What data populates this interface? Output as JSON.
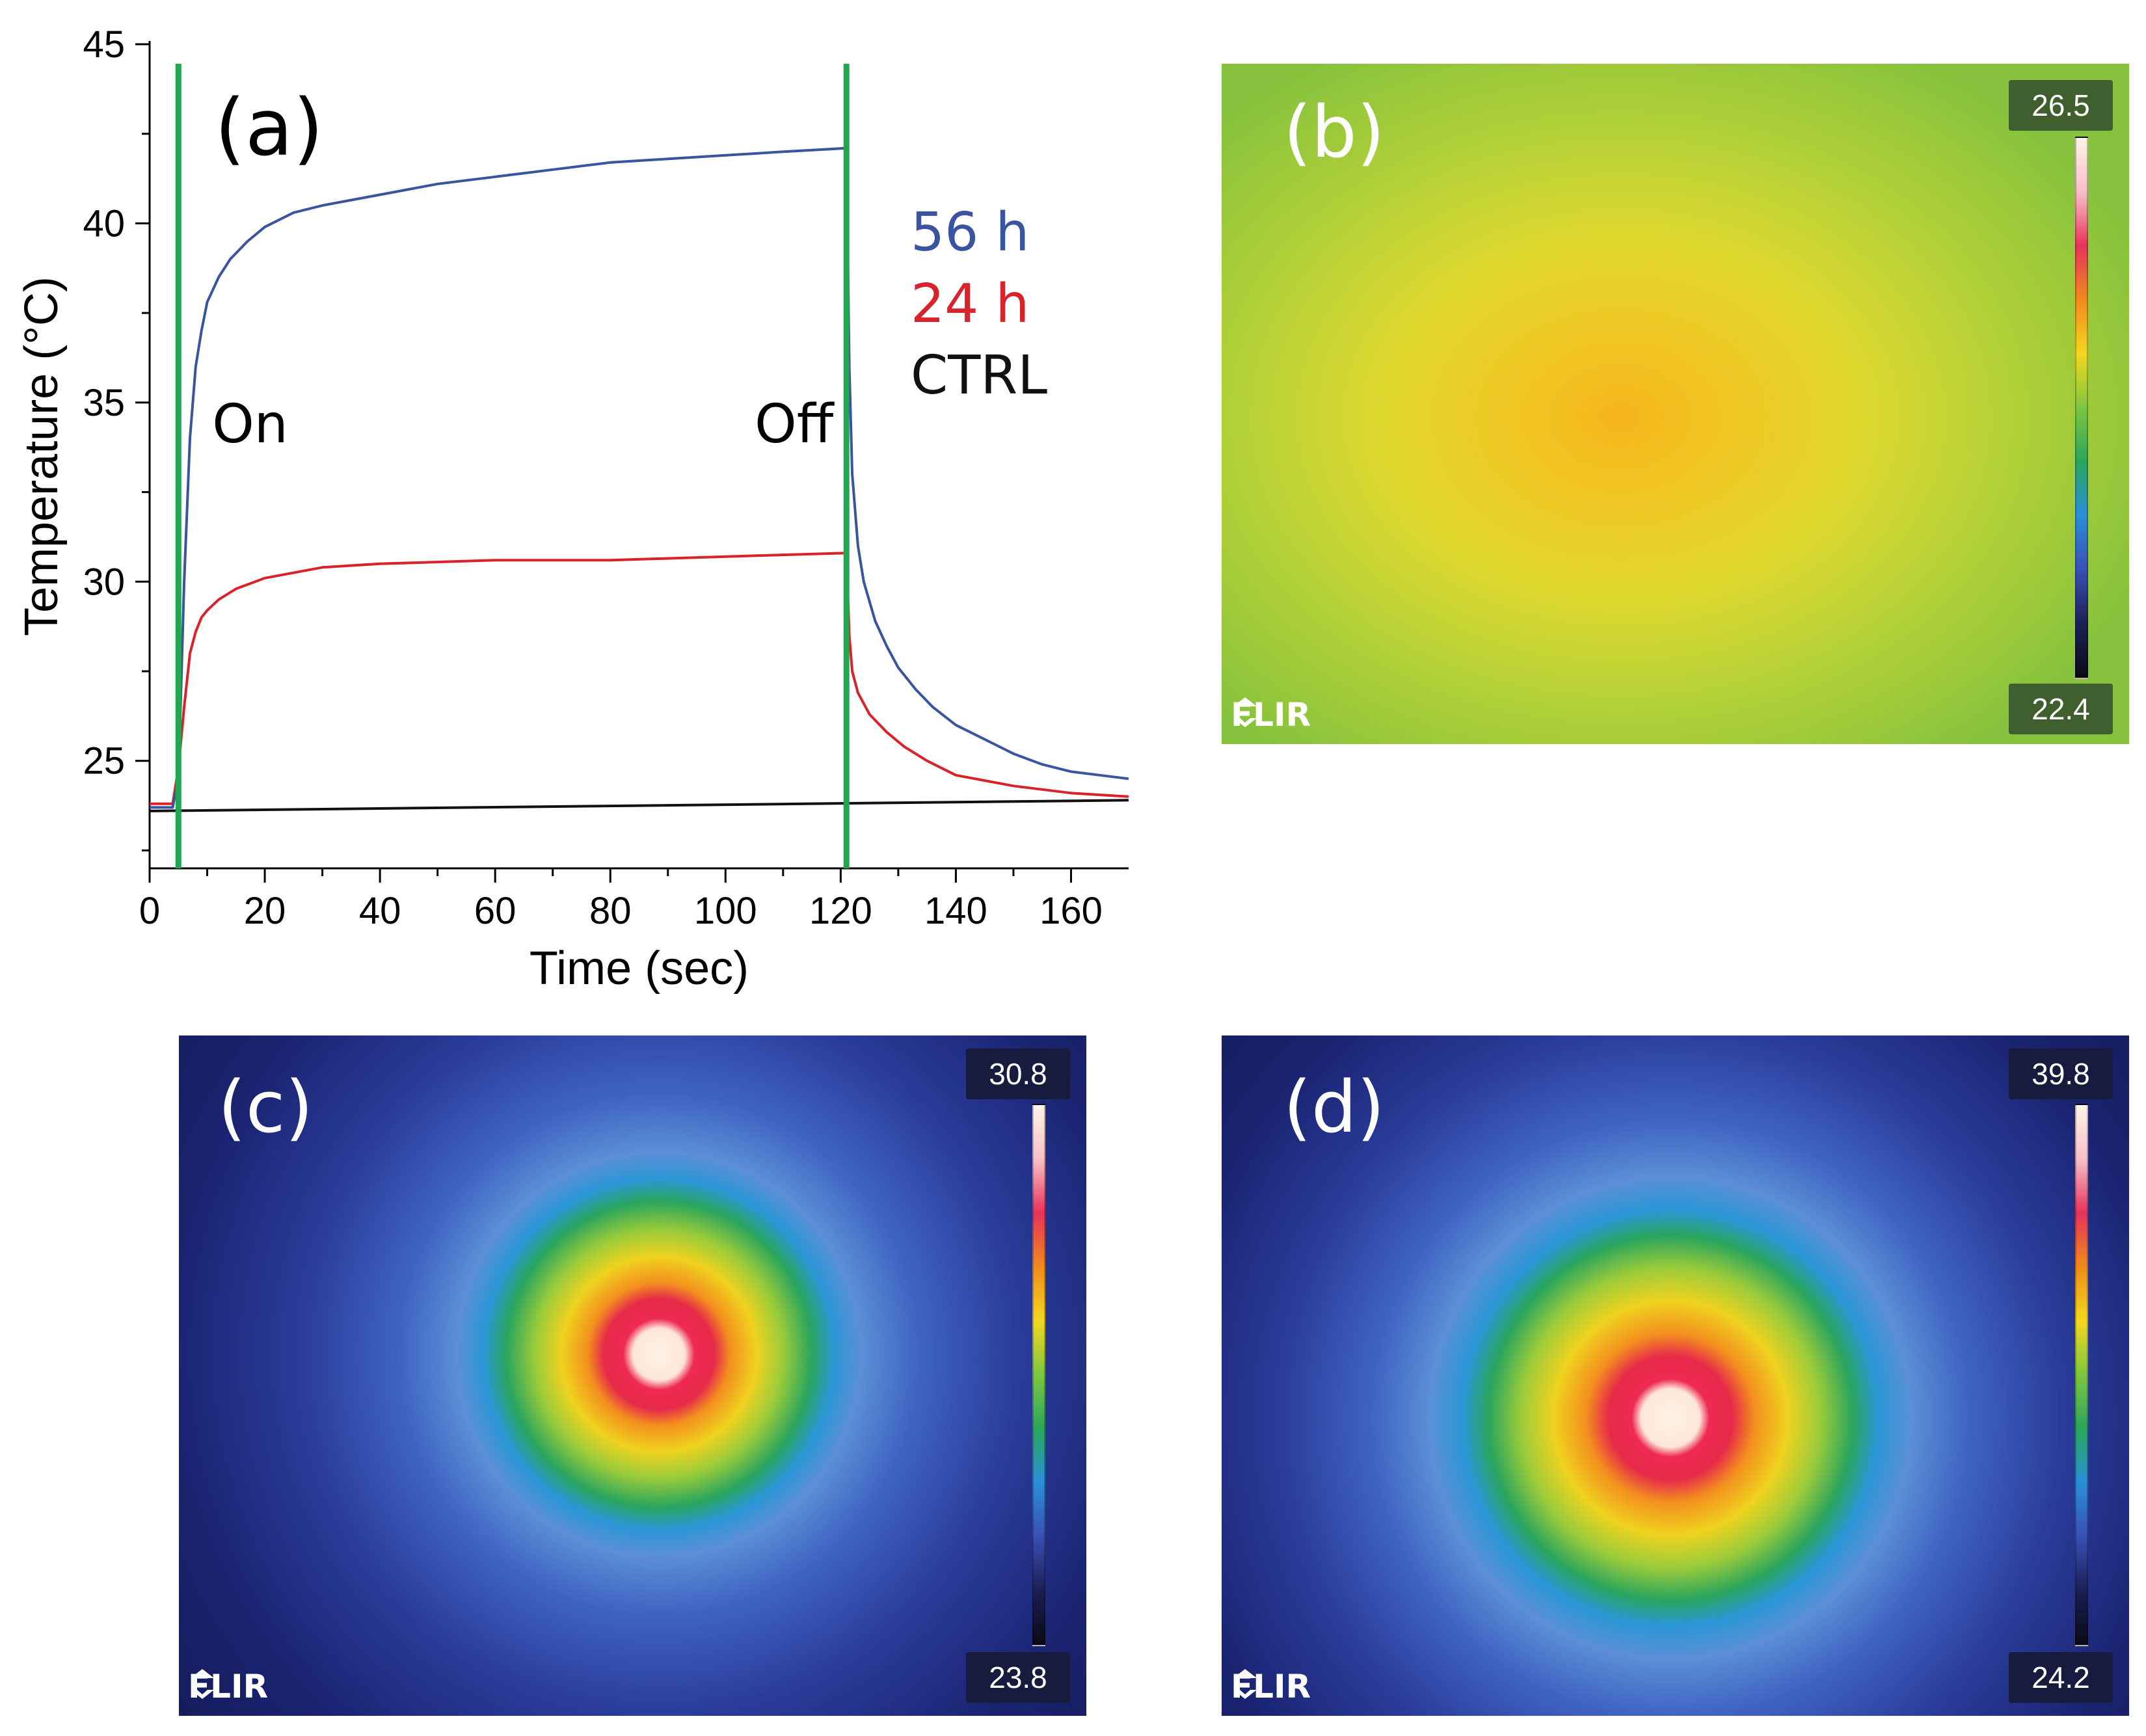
{
  "chart_data": {
    "type": "line",
    "panel_label": "(a)",
    "xlabel": "Time (sec)",
    "ylabel": "Temperature (°C)",
    "xlim": [
      0,
      170
    ],
    "ylim": [
      22,
      45
    ],
    "xticks": [
      0,
      20,
      40,
      60,
      80,
      100,
      120,
      140,
      160
    ],
    "yticks": [
      25,
      30,
      35,
      40,
      45
    ],
    "series": [
      {
        "name": "56 h",
        "color": "#3a54a0",
        "x": [
          0,
          4,
          5,
          6,
          7,
          8,
          9,
          10,
          12,
          14,
          17,
          20,
          25,
          30,
          40,
          50,
          60,
          70,
          80,
          90,
          100,
          110,
          121,
          121.5,
          122,
          123,
          124,
          126,
          128,
          130,
          133,
          136,
          140,
          145,
          150,
          155,
          160,
          165,
          170
        ],
        "y": [
          23.7,
          23.7,
          24.5,
          30.0,
          34.0,
          36.0,
          37.0,
          37.8,
          38.5,
          39.0,
          39.5,
          39.9,
          40.3,
          40.5,
          40.8,
          41.1,
          41.3,
          41.5,
          41.7,
          41.8,
          41.9,
          42.0,
          42.1,
          36.0,
          33.0,
          31.0,
          30.0,
          28.9,
          28.2,
          27.6,
          27.0,
          26.5,
          26.0,
          25.6,
          25.2,
          24.9,
          24.7,
          24.6,
          24.5
        ]
      },
      {
        "name": "24 h",
        "color": "#d8232a",
        "x": [
          0,
          4,
          5,
          6,
          7,
          8,
          9,
          10,
          12,
          15,
          20,
          30,
          40,
          60,
          80,
          100,
          121,
          121.5,
          122,
          123,
          125,
          128,
          131,
          135,
          140,
          150,
          160,
          170
        ],
        "y": [
          23.8,
          23.8,
          24.8,
          26.5,
          28.0,
          28.6,
          29.0,
          29.2,
          29.5,
          29.8,
          30.1,
          30.4,
          30.5,
          30.6,
          30.6,
          30.7,
          30.8,
          28.5,
          27.5,
          26.9,
          26.3,
          25.8,
          25.4,
          25.0,
          24.6,
          24.3,
          24.1,
          24.0
        ]
      },
      {
        "name": "CTRL",
        "color": "#111111",
        "x": [
          0,
          170
        ],
        "y": [
          23.6,
          23.9
        ]
      }
    ],
    "markers": [
      {
        "x": 5,
        "label": "On",
        "color": "#1fa84f"
      },
      {
        "x": 121,
        "label": "Off",
        "color": "#1fa84f"
      }
    ]
  },
  "thermal_images": [
    {
      "label": "(b)",
      "max": "26.5",
      "min": "22.4",
      "logo": "FLIR"
    },
    {
      "label": "(c)",
      "max": "30.8",
      "min": "23.8",
      "logo": "FLIR"
    },
    {
      "label": "(d)",
      "max": "39.8",
      "min": "24.2",
      "logo": "FLIR"
    }
  ]
}
